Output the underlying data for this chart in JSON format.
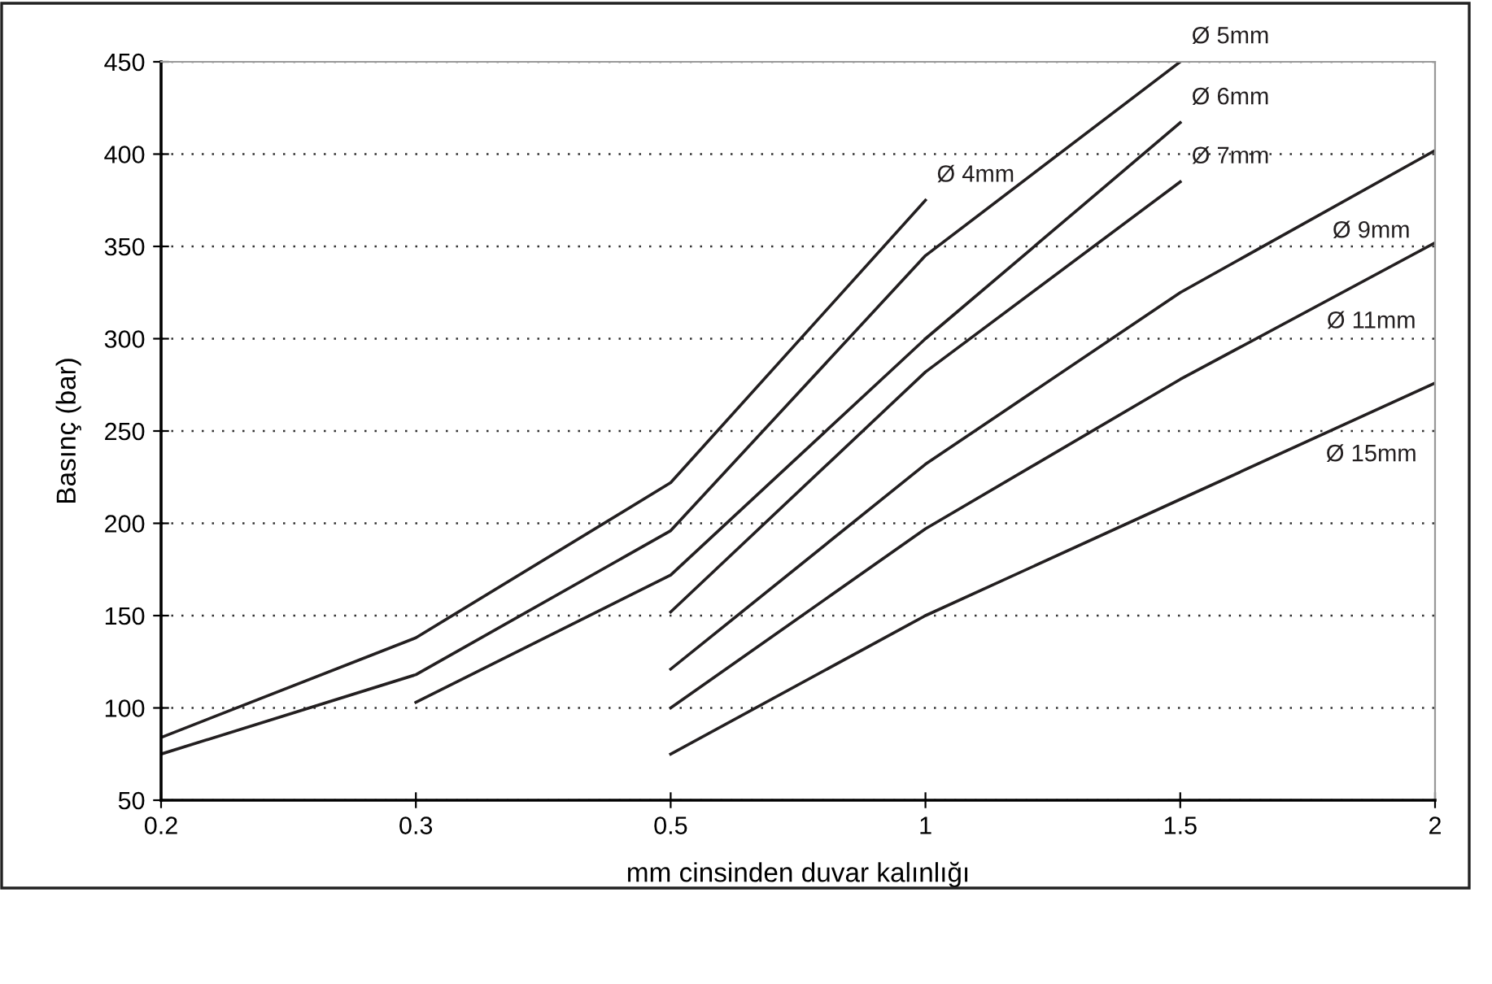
{
  "chart_data": {
    "type": "line",
    "xlabel": "mm cinsinden duvar kalınlığı",
    "ylabel": "Basınç (bar)",
    "categories": [
      "0.2",
      "0.3",
      "0.5",
      "1",
      "1.5",
      "2"
    ],
    "ylim": [
      50,
      450
    ],
    "yticks": [
      50,
      100,
      150,
      200,
      250,
      300,
      350,
      400,
      450
    ],
    "grid": "y",
    "marker": "none",
    "line_style": "solid",
    "legend": false,
    "series": [
      {
        "name": "Ø 4mm",
        "color": "#231f20",
        "values": [
          84,
          138,
          222,
          375,
          null,
          null
        ]
      },
      {
        "name": "Ø 5mm",
        "color": "#231f20",
        "values": [
          75,
          118,
          196,
          345,
          450,
          null
        ]
      },
      {
        "name": "Ø 6mm",
        "color": "#231f20",
        "values": [
          null,
          103,
          172,
          300,
          417,
          null
        ]
      },
      {
        "name": "Ø 7mm",
        "color": "#231f20",
        "values": [
          null,
          null,
          152,
          282,
          385,
          null
        ]
      },
      {
        "name": "Ø 9mm",
        "color": "#231f20",
        "values": [
          null,
          null,
          121,
          232,
          325,
          402
        ]
      },
      {
        "name": "Ø 11mm",
        "color": "#231f20",
        "values": [
          null,
          null,
          100,
          197,
          278,
          352
        ]
      },
      {
        "name": "Ø 15mm",
        "color": "#231f20",
        "values": [
          null,
          null,
          75,
          150,
          213,
          276
        ]
      }
    ]
  }
}
